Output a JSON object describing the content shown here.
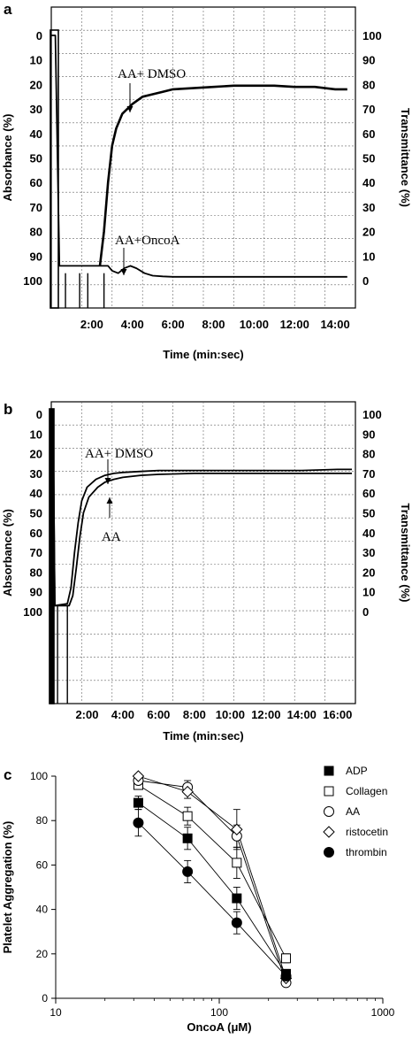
{
  "panels": [
    {
      "letter": "a",
      "xlabel": "Time (min:sec)",
      "ylabel_left": "Absorbance (%)",
      "ylabel_right": "Transmittance (%)",
      "x_ticks": [
        "2:00",
        "4:00",
        "6:00",
        "8:00",
        "10:00",
        "12:00",
        "14:00"
      ],
      "y_left_ticks": [
        "0",
        "10",
        "20",
        "30",
        "40",
        "50",
        "60",
        "70",
        "80",
        "90",
        "100"
      ],
      "y_right_ticks": [
        "100",
        "90",
        "80",
        "70",
        "60",
        "50",
        "40",
        "30",
        "20",
        "10",
        "0"
      ],
      "annotations": [
        "AA+ DMSO",
        "AA+OncoA"
      ]
    },
    {
      "letter": "b",
      "xlabel": "Time (min:sec)",
      "ylabel_left": "Absorbance (%)",
      "ylabel_right": "Transmittance (%)",
      "x_ticks": [
        "2:00",
        "4:00",
        "6:00",
        "8:00",
        "10:00",
        "12:00",
        "14:00",
        "16:00"
      ],
      "y_left_ticks": [
        "0",
        "10",
        "20",
        "30",
        "40",
        "50",
        "60",
        "70",
        "80",
        "90",
        "100"
      ],
      "y_right_ticks": [
        "100",
        "90",
        "80",
        "70",
        "60",
        "50",
        "40",
        "30",
        "20",
        "10",
        "0"
      ],
      "annotations": [
        "AA+ DMSO",
        "AA"
      ]
    }
  ],
  "chart_data": [
    {
      "type": "line",
      "panel": "a",
      "xlabel": "Time (min:sec)",
      "ylabel": "Absorbance (%)",
      "ylabel_right": "Transmittance (%)",
      "x_unit": "min",
      "xlim": [
        0,
        15
      ],
      "ylim": [
        100,
        0
      ],
      "grid": true,
      "series": [
        {
          "name": "AA+ DMSO",
          "x": [
            2.4,
            2.6,
            2.8,
            3.0,
            3.2,
            3.5,
            4.0,
            4.5,
            5.0,
            5.5,
            6.0,
            7.0,
            8.0,
            9.0,
            10.0,
            11.0,
            12.0,
            13.0,
            14.0,
            14.6
          ],
          "y": [
            94,
            80,
            60,
            45,
            38,
            32,
            28,
            25,
            24,
            23,
            22,
            21.5,
            21,
            20.5,
            20.5,
            20.5,
            21,
            21,
            22,
            22
          ]
        },
        {
          "name": "AA+OncoA",
          "x": [
            0,
            0.2,
            0.4,
            2.5,
            2.8,
            3.0,
            3.3,
            3.6,
            3.9,
            4.2,
            4.6,
            5.0,
            5.5,
            6.0,
            7.0,
            8.0,
            10.0,
            12.0,
            14.6
          ],
          "y": [
            0,
            0,
            94,
            94,
            94,
            96,
            97,
            95,
            94,
            95,
            97,
            98,
            98.3,
            98.5,
            98.5,
            98.5,
            98.5,
            98.5,
            98.5
          ]
        }
      ]
    },
    {
      "type": "line",
      "panel": "b",
      "xlabel": "Time (min:sec)",
      "ylabel": "Absorbance (%)",
      "ylabel_right": "Transmittance (%)",
      "x_unit": "min",
      "xlim": [
        0,
        17
      ],
      "ylim": [
        100,
        0
      ],
      "grid": true,
      "series": [
        {
          "name": "AA+ DMSO",
          "x": [
            0,
            0.1,
            0.2,
            0.9,
            1.1,
            1.3,
            1.5,
            1.7,
            2.0,
            2.5,
            3.0,
            3.5,
            4.0,
            5.0,
            6.0,
            8.0,
            10.0,
            12.0,
            14.0,
            16.0,
            16.8
          ],
          "y": [
            0,
            0,
            97,
            96,
            88,
            70,
            55,
            44,
            37,
            33,
            31,
            30,
            29.5,
            29,
            28.5,
            28.5,
            28.5,
            28.5,
            28.5,
            28,
            28
          ]
        },
        {
          "name": "AA",
          "x": [
            0,
            0.1,
            0.2,
            1.0,
            1.2,
            1.4,
            1.6,
            1.8,
            2.1,
            2.6,
            3.0,
            3.5,
            4.0,
            5.0,
            6.0,
            8.0,
            10.0,
            12.0,
            14.0,
            16.0,
            16.8
          ],
          "y": [
            0,
            0,
            97,
            97,
            92,
            78,
            62,
            50,
            42,
            37,
            34.5,
            33,
            32,
            31,
            30.5,
            30,
            30,
            30,
            30,
            30,
            30
          ]
        }
      ]
    },
    {
      "type": "scatter",
      "panel": "c",
      "xlabel": "OncoA (μM)",
      "ylabel": "Platelet Aggregation (%)",
      "xscale": "log",
      "xlim": [
        10,
        1000
      ],
      "ylim": [
        0,
        100
      ],
      "x_ticks": [
        "10",
        "100",
        "1000"
      ],
      "y_ticks": [
        "0",
        "20",
        "40",
        "60",
        "80",
        "100"
      ],
      "legend_position": "right",
      "series": [
        {
          "name": "ADP",
          "marker": "filled-square",
          "x": [
            32,
            64,
            128,
            256
          ],
          "y": [
            88,
            72,
            45,
            11
          ],
          "err": [
            3,
            5,
            5,
            2
          ]
        },
        {
          "name": "Collagen",
          "marker": "open-square",
          "x": [
            32,
            64,
            128,
            256
          ],
          "y": [
            96,
            82,
            61,
            18
          ],
          "err": [
            2,
            4,
            7,
            2
          ]
        },
        {
          "name": "AA",
          "marker": "open-circle",
          "x": [
            32,
            64,
            128,
            256
          ],
          "y": [
            98,
            95,
            73,
            7
          ],
          "err": [
            1,
            3,
            5,
            1
          ]
        },
        {
          "name": "ristocetin",
          "marker": "open-diamond",
          "x": [
            32,
            64,
            128,
            256
          ],
          "y": [
            100,
            93,
            76,
            9
          ],
          "err": [
            1,
            3,
            9,
            2
          ]
        },
        {
          "name": "thrombin",
          "marker": "filled-circle",
          "x": [
            32,
            64,
            128,
            256
          ],
          "y": [
            79,
            57,
            34,
            10
          ],
          "err": [
            6,
            5,
            5,
            2
          ]
        }
      ]
    }
  ]
}
